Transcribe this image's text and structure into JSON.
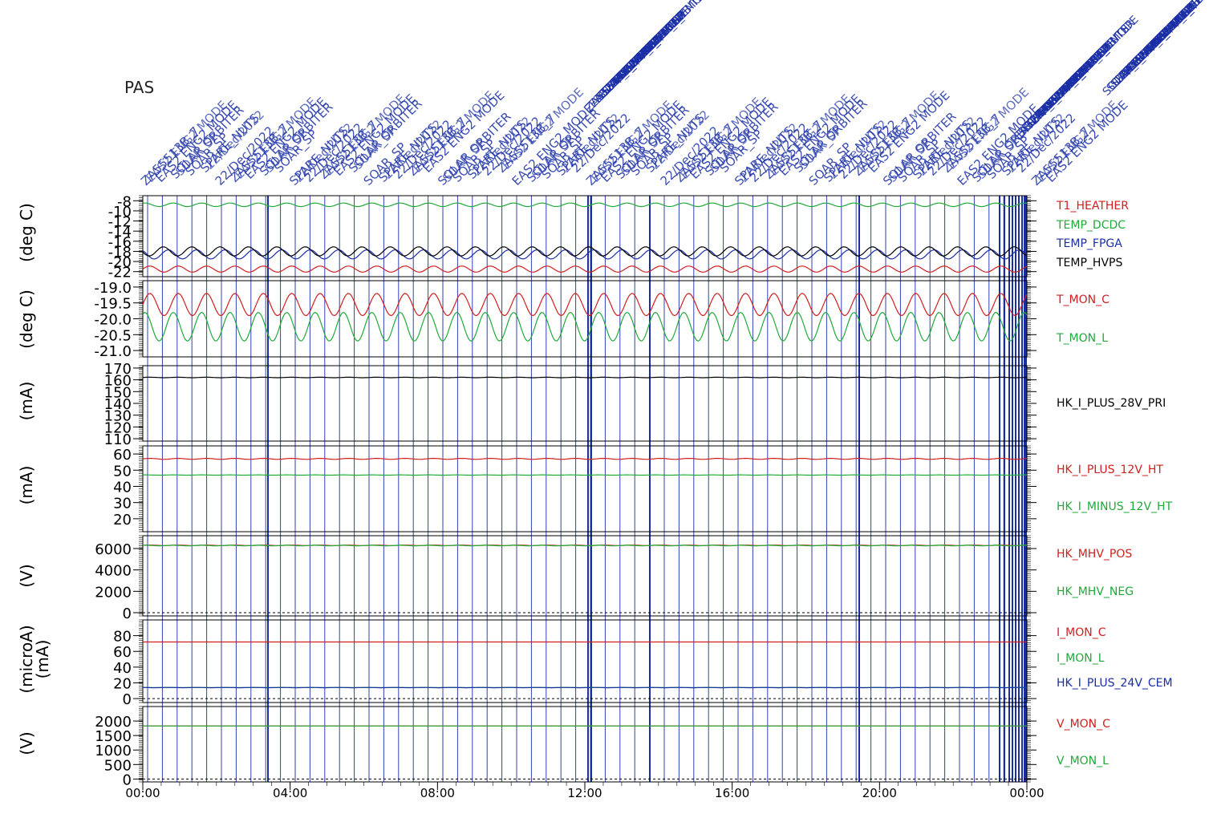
{
  "instrument": "PAS",
  "event_labels": [
    "ZA55513B_7",
    "EAS2 ENG2 MODE",
    "SOLAR ORBITER",
    "SOAR_SP",
    "SPARE_NUTS",
    "22/Dec/2022"
  ],
  "colors": {
    "red": "#d11f1f",
    "green": "#1faa3a",
    "blue": "#1a2ea6",
    "black": "#000000",
    "event_line": "#1a2ea6"
  },
  "chart_data": [
    {
      "type": "line",
      "ylabel": "(deg C)",
      "ylim": [
        -23,
        -7
      ],
      "yticks": [
        -8,
        -10,
        -12,
        -14,
        -16,
        -18,
        -20,
        -22
      ],
      "series": [
        {
          "name": "T1_HEATHER",
          "color": "red",
          "baseline": -21.5,
          "amplitude": 0.6
        },
        {
          "name": "TEMP_DCDC",
          "color": "green",
          "baseline": -8.8,
          "amplitude": 0.35
        },
        {
          "name": "TEMP_FPGA",
          "color": "blue",
          "baseline": -18.6,
          "amplitude": 0.9
        },
        {
          "name": "TEMP_HVPS",
          "color": "black",
          "baseline": -18.0,
          "amplitude": 0.9
        }
      ]
    },
    {
      "type": "line",
      "ylabel": "(deg C)",
      "ylim": [
        -21.2,
        -18.8
      ],
      "yticks": [
        "-19.0",
        "-19.5",
        "-20.0",
        "-20.5",
        "-21.0"
      ],
      "series": [
        {
          "name": "T_MON_C",
          "color": "red",
          "baseline": -19.55,
          "amplitude": 0.35
        },
        {
          "name": "T_MON_L",
          "color": "green",
          "baseline": -20.25,
          "amplitude": 0.45
        }
      ]
    },
    {
      "type": "line",
      "ylabel": "(mA)",
      "ylim": [
        108,
        172
      ],
      "yticks": [
        170,
        160,
        150,
        140,
        130,
        120,
        110
      ],
      "series": [
        {
          "name": "HK_I_PLUS_28V_PRI",
          "color": "black",
          "baseline": 162,
          "amplitude": 0.2
        }
      ]
    },
    {
      "type": "line",
      "ylabel": "(mA)",
      "ylim": [
        12,
        65
      ],
      "yticks": [
        60,
        50,
        40,
        30,
        20
      ],
      "series": [
        {
          "name": "HK_I_PLUS_12V_HT",
          "color": "red",
          "baseline": 57,
          "amplitude": 0.3
        },
        {
          "name": "HK_I_MINUS_12V_HT",
          "color": "green",
          "baseline": 47,
          "amplitude": 0.1
        }
      ]
    },
    {
      "type": "line",
      "ylabel": "(V)",
      "ylim": [
        -300,
        7200
      ],
      "yticks": [
        6000,
        4000,
        2000,
        0
      ],
      "series": [
        {
          "name": "HK_MHV_POS",
          "color": "red",
          "baseline": 6300,
          "amplitude": 25
        },
        {
          "name": "HK_MHV_NEG",
          "color": "green",
          "baseline": 6280,
          "amplitude": 25
        }
      ]
    },
    {
      "type": "line",
      "ylabel": "(microA)",
      "ylabel2": "(mA)",
      "ylim": [
        -5,
        100
      ],
      "yticks": [
        80,
        60,
        40,
        20,
        0
      ],
      "series": [
        {
          "name": "I_MON_C",
          "color": "red",
          "baseline": 72,
          "amplitude": 0
        },
        {
          "name": "I_MON_L",
          "color": "green",
          "baseline": 14,
          "amplitude": 0
        },
        {
          "name": "HK_I_PLUS_24V_CEM",
          "color": "blue",
          "baseline": 14,
          "amplitude": 0.2
        }
      ]
    },
    {
      "type": "line",
      "ylabel": "(V)",
      "ylim": [
        -100,
        2500
      ],
      "yticks": [
        2000,
        1500,
        1000,
        500,
        0
      ],
      "series": [
        {
          "name": "V_MON_C",
          "color": "red",
          "baseline": 1830,
          "amplitude": 0
        },
        {
          "name": "V_MON_L",
          "color": "green",
          "baseline": 1830,
          "amplitude": 0
        }
      ]
    }
  ],
  "x_axis": {
    "ticks": [
      "00:00",
      "04:00",
      "08:00",
      "12:00",
      "16:00",
      "20:00",
      "00:00"
    ],
    "range_hours": [
      0,
      24
    ]
  }
}
